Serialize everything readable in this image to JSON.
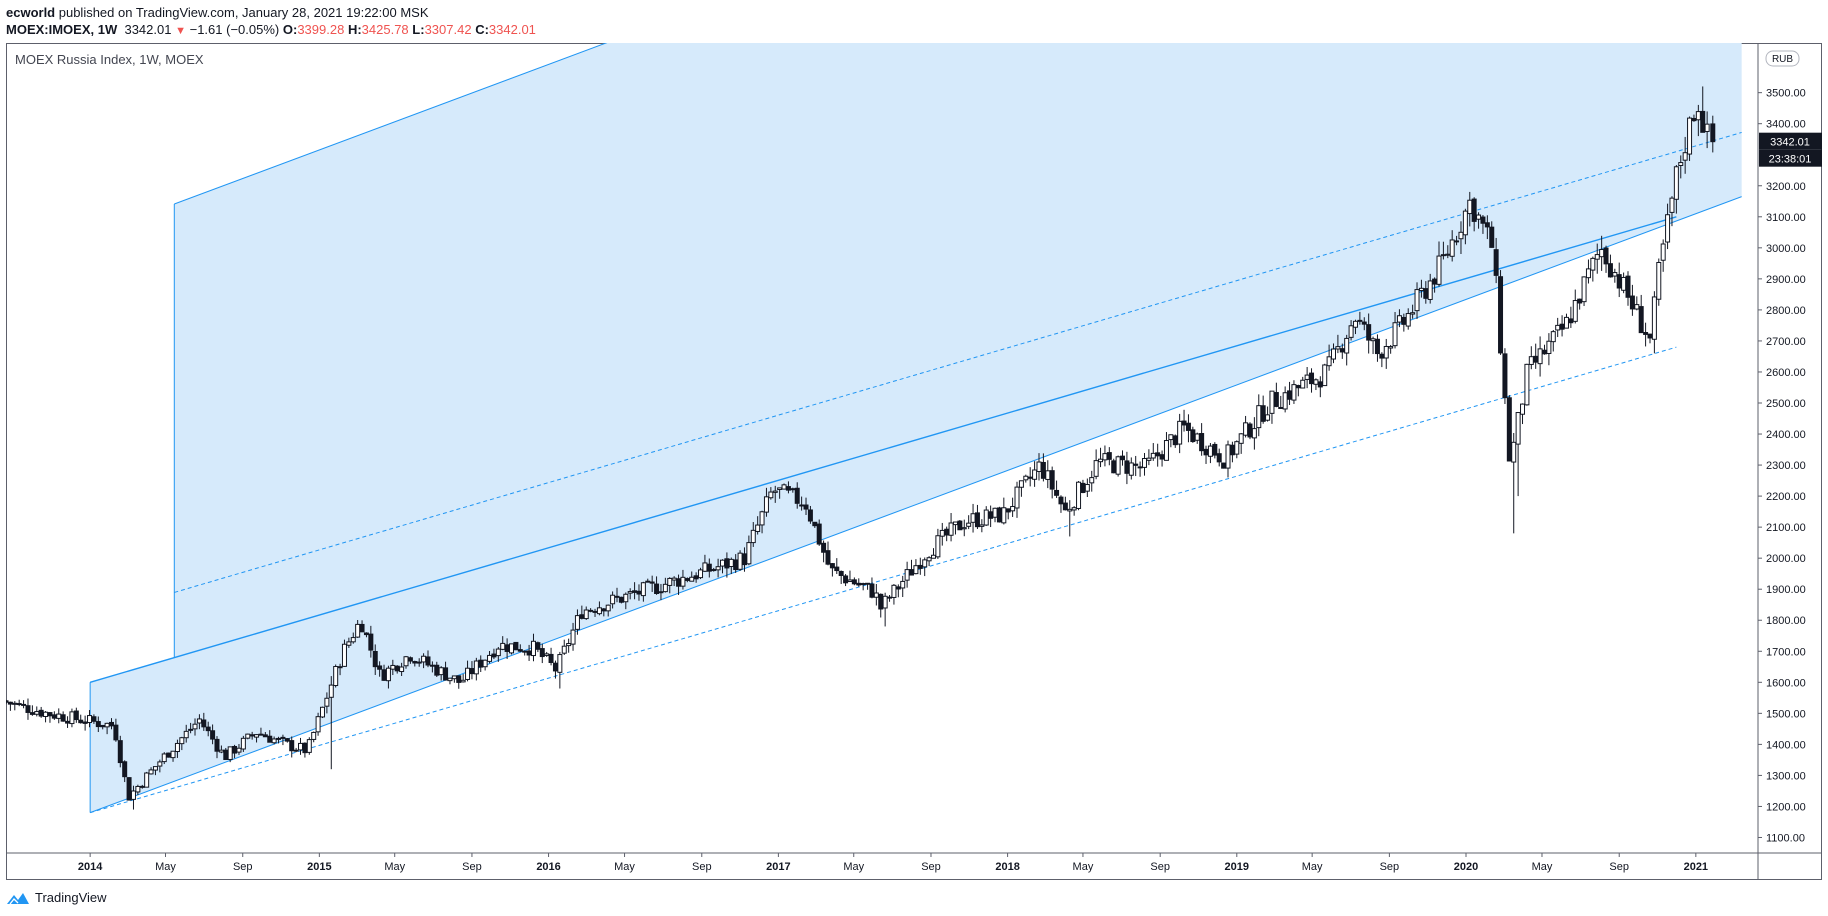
{
  "header": {
    "author": "ecworld",
    "published": " published on TradingView.com, January 28, 2021 19:22:00 MSK",
    "symbol": "MOEX:IMOEX, 1W",
    "last": "3342.01",
    "change_arrow": "▼",
    "change": "−1.61 (−0.05%)",
    "o_label": "O:",
    "o_value": "3399.28",
    "h_label": "H:",
    "h_value": "3425.78",
    "l_label": "L:",
    "l_value": "3307.42",
    "c_label": "C:",
    "c_value": "3342.01"
  },
  "chart_title": "MOEX Russia Index, 1W, MOEX",
  "currency_badge": "RUB",
  "price_badge": "3342.01",
  "time_badge": "23:38:01",
  "footer": {
    "brand": "TradingView",
    "logo_icon": "tradingview-logo-icon"
  },
  "colors": {
    "channel_fill": "#d6eafb",
    "channel_line": "#2196f3",
    "candle": "#131722",
    "badge_bg": "#131722",
    "badge_text": "#ffffff",
    "down": "#ef5350"
  },
  "chart_data": {
    "type": "candlestick",
    "title": "MOEX Russia Index, 1W, MOEX",
    "y_axis": {
      "range": [
        1050,
        3660
      ],
      "ticks": [
        1100,
        1200,
        1300,
        1400,
        1500,
        1600,
        1700,
        1800,
        1900,
        2000,
        2100,
        2200,
        2300,
        2400,
        2500,
        2600,
        2700,
        2800,
        2900,
        3000,
        3100,
        3200,
        3400,
        3500
      ],
      "tick_labels": [
        "1100.00",
        "1200.00",
        "1300.00",
        "1400.00",
        "1500.00",
        "1600.00",
        "1700.00",
        "1800.00",
        "1900.00",
        "2000.00",
        "2100.00",
        "2200.00",
        "2300.00",
        "2400.00",
        "2500.00",
        "2600.00",
        "2700.00",
        "2800.00",
        "2900.00",
        "3000.00",
        "3100.00",
        "3200.00",
        "3400.00",
        "3500.00"
      ]
    },
    "x_axis": {
      "range": [
        "2013-08-20",
        "2021-04-10"
      ],
      "ticks": [
        {
          "date": "2014-01-01",
          "label": "2014",
          "year": true
        },
        {
          "date": "2014-05-01",
          "label": "May"
        },
        {
          "date": "2014-09-01",
          "label": "Sep"
        },
        {
          "date": "2015-01-01",
          "label": "2015",
          "year": true
        },
        {
          "date": "2015-05-01",
          "label": "May"
        },
        {
          "date": "2015-09-01",
          "label": "Sep"
        },
        {
          "date": "2016-01-01",
          "label": "2016",
          "year": true
        },
        {
          "date": "2016-05-01",
          "label": "May"
        },
        {
          "date": "2016-09-01",
          "label": "Sep"
        },
        {
          "date": "2017-01-01",
          "label": "2017",
          "year": true
        },
        {
          "date": "2017-05-01",
          "label": "May"
        },
        {
          "date": "2017-09-01",
          "label": "Sep"
        },
        {
          "date": "2018-01-01",
          "label": "2018",
          "year": true
        },
        {
          "date": "2018-05-01",
          "label": "May"
        },
        {
          "date": "2018-09-01",
          "label": "Sep"
        },
        {
          "date": "2019-01-01",
          "label": "2019",
          "year": true
        },
        {
          "date": "2019-05-01",
          "label": "May"
        },
        {
          "date": "2019-09-01",
          "label": "Sep"
        },
        {
          "date": "2020-01-01",
          "label": "2020",
          "year": true
        },
        {
          "date": "2020-05-01",
          "label": "May"
        },
        {
          "date": "2020-09-01",
          "label": "Sep"
        },
        {
          "date": "2021-01-01",
          "label": "2021",
          "year": true
        }
      ]
    },
    "price_path": [
      [
        "2013-08-20",
        1540
      ],
      [
        "2013-11-01",
        1500
      ],
      [
        "2014-02-15",
        1460
      ],
      [
        "2014-03-10",
        1230
      ],
      [
        "2014-05-01",
        1350
      ],
      [
        "2014-07-01",
        1480
      ],
      [
        "2014-08-10",
        1360
      ],
      [
        "2014-10-01",
        1440
      ],
      [
        "2014-11-15",
        1400
      ],
      [
        "2014-12-20",
        1380
      ],
      [
        "2015-02-15",
        1700
      ],
      [
        "2015-03-15",
        1800
      ],
      [
        "2015-04-15",
        1620
      ],
      [
        "2015-06-01",
        1690
      ],
      [
        "2015-08-20",
        1600
      ],
      [
        "2015-10-20",
        1720
      ],
      [
        "2015-12-15",
        1710
      ],
      [
        "2016-01-20",
        1640
      ],
      [
        "2016-03-01",
        1830
      ],
      [
        "2016-06-15",
        1900
      ],
      [
        "2016-09-01",
        1950
      ],
      [
        "2016-11-15",
        2000
      ],
      [
        "2016-12-30",
        2220
      ],
      [
        "2017-02-20",
        2180
      ],
      [
        "2017-04-01",
        1960
      ],
      [
        "2017-06-10",
        1890
      ],
      [
        "2017-06-20",
        1840
      ],
      [
        "2017-09-01",
        2020
      ],
      [
        "2017-11-01",
        2120
      ],
      [
        "2018-01-01",
        2140
      ],
      [
        "2018-03-01",
        2300
      ],
      [
        "2018-04-10",
        2150
      ],
      [
        "2018-06-01",
        2310
      ],
      [
        "2018-08-15",
        2290
      ],
      [
        "2018-10-15",
        2420
      ],
      [
        "2018-12-20",
        2320
      ],
      [
        "2019-03-01",
        2500
      ],
      [
        "2019-06-01",
        2600
      ],
      [
        "2019-07-15",
        2780
      ],
      [
        "2019-08-20",
        2660
      ],
      [
        "2019-10-01",
        2760
      ],
      [
        "2019-12-01",
        2950
      ],
      [
        "2020-01-15",
        3150
      ],
      [
        "2020-02-20",
        3000
      ],
      [
        "2020-03-18",
        2300
      ],
      [
        "2020-04-15",
        2600
      ],
      [
        "2020-06-15",
        2750
      ],
      [
        "2020-08-10",
        3000
      ],
      [
        "2020-09-15",
        2870
      ],
      [
        "2020-10-28",
        2700
      ],
      [
        "2020-11-10",
        2920
      ],
      [
        "2020-12-10",
        3250
      ],
      [
        "2021-01-10",
        3480
      ],
      [
        "2021-01-28",
        3342
      ]
    ],
    "wick_spikes": [
      [
        "2014-03-10",
        1190
      ],
      [
        "2015-01-20",
        1320
      ],
      [
        "2015-01-20",
        1620
      ],
      [
        "2016-01-20",
        1580
      ],
      [
        "2017-06-20",
        1780
      ],
      [
        "2018-04-10",
        2070
      ],
      [
        "2018-12-20",
        2260
      ],
      [
        "2020-03-18",
        2080
      ],
      [
        "2020-03-25",
        2200
      ],
      [
        "2020-10-28",
        2660
      ],
      [
        "2021-01-15",
        3520
      ]
    ],
    "last_candle": {
      "date": "2021-01-28",
      "open": 3399.28,
      "high": 3425.78,
      "low": 3307.42,
      "close": 3342.01
    },
    "regression_channel": {
      "outer": {
        "start": [
          "2014-01-01",
          1180
        ],
        "end": [
          "2021-03-15",
          3165
        ],
        "upper_offset": 1860,
        "upper_start_date": "2014-05-15"
      },
      "inner": {
        "start": [
          "2014-01-01",
          1600
        ],
        "end": [
          "2020-12-01",
          3100
        ],
        "lower_offset": -420,
        "upper_offset": 210
      }
    }
  }
}
